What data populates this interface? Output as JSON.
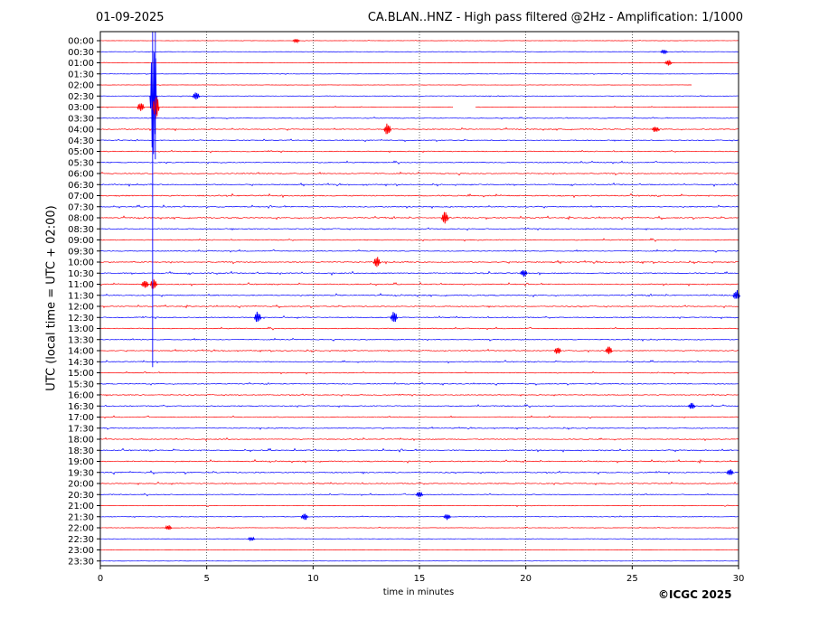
{
  "header": {
    "date": "01-09-2025",
    "title": "CA.BLAN..HNZ - High pass filtered @2Hz - Amplification: 1/1000"
  },
  "footer": {
    "copyright": "©ICGC 2025"
  },
  "colors": {
    "trace_a": "#ff0000",
    "trace_b": "#0000ff",
    "grid": "#000000",
    "blank_gap": "#ffffff"
  },
  "chart_data": {
    "type": "line",
    "xlabel": "time in minutes",
    "ylabel": "UTC (local time = UTC + 02:00)",
    "xlim": [
      0,
      30
    ],
    "x_ticks": [
      0,
      5,
      10,
      15,
      20,
      25,
      30
    ],
    "vertical_grid": [
      5,
      10,
      15,
      20,
      25
    ],
    "grid": true,
    "legend": "none",
    "rows": [
      "00:00",
      "00:30",
      "01:00",
      "01:30",
      "02:00",
      "02:30",
      "03:00",
      "03:30",
      "04:00",
      "04:30",
      "05:00",
      "05:30",
      "06:00",
      "06:30",
      "07:00",
      "07:30",
      "08:00",
      "08:30",
      "09:00",
      "09:30",
      "10:00",
      "10:30",
      "11:00",
      "11:30",
      "12:00",
      "12:30",
      "13:00",
      "13:30",
      "14:00",
      "14:30",
      "15:00",
      "15:30",
      "16:00",
      "16:30",
      "17:00",
      "17:30",
      "18:00",
      "18:30",
      "19:00",
      "19:30",
      "20:00",
      "20:30",
      "21:00",
      "21:30",
      "22:00",
      "22:30",
      "23:00",
      "23:30"
    ],
    "row_colors": [
      "red",
      "blue"
    ],
    "gaps": [
      {
        "row": "02:00",
        "from_min": 27.8,
        "to_min": 30
      },
      {
        "row": "03:00",
        "from_min": 16.6,
        "to_min": 17.6
      }
    ],
    "events": [
      {
        "row": "00:00",
        "minute": 9.2,
        "amp": 0.18
      },
      {
        "row": "00:30",
        "minute": 26.5,
        "amp": 0.2
      },
      {
        "row": "01:00",
        "minute": 26.7,
        "amp": 0.25
      },
      {
        "row": "02:30",
        "minute": 2.5,
        "amp": 6.0
      },
      {
        "row": "02:30",
        "minute": 4.5,
        "amp": 0.35
      },
      {
        "row": "03:00",
        "minute": 1.9,
        "amp": 0.45
      },
      {
        "row": "03:00",
        "minute": 2.6,
        "amp": 1.2
      },
      {
        "row": "04:00",
        "minute": 13.5,
        "amp": 0.55
      },
      {
        "row": "04:00",
        "minute": 26.1,
        "amp": 0.3
      },
      {
        "row": "08:00",
        "minute": 16.2,
        "amp": 0.6
      },
      {
        "row": "10:00",
        "minute": 13.0,
        "amp": 0.5
      },
      {
        "row": "10:30",
        "minute": 19.9,
        "amp": 0.35
      },
      {
        "row": "11:00",
        "minute": 2.1,
        "amp": 0.45
      },
      {
        "row": "11:00",
        "minute": 2.5,
        "amp": 0.5
      },
      {
        "row": "11:30",
        "minute": 29.9,
        "amp": 0.5
      },
      {
        "row": "12:30",
        "minute": 7.4,
        "amp": 0.55
      },
      {
        "row": "12:30",
        "minute": 13.8,
        "amp": 0.55
      },
      {
        "row": "14:00",
        "minute": 21.5,
        "amp": 0.35
      },
      {
        "row": "14:00",
        "minute": 23.9,
        "amp": 0.4
      },
      {
        "row": "16:30",
        "minute": 27.8,
        "amp": 0.3
      },
      {
        "row": "19:30",
        "minute": 29.6,
        "amp": 0.3
      },
      {
        "row": "20:30",
        "minute": 15.0,
        "amp": 0.3
      },
      {
        "row": "21:30",
        "minute": 9.6,
        "amp": 0.35
      },
      {
        "row": "21:30",
        "minute": 16.3,
        "amp": 0.3
      },
      {
        "row": "22:00",
        "minute": 3.2,
        "amp": 0.25
      },
      {
        "row": "22:30",
        "minute": 7.1,
        "amp": 0.22
      }
    ],
    "baseline_activity": [
      {
        "row": "00:00",
        "level": 0.05
      },
      {
        "row": "00:30",
        "level": 0.05
      },
      {
        "row": "01:00",
        "level": 0.05
      },
      {
        "row": "01:30",
        "level": 0.06
      },
      {
        "row": "02:00",
        "level": 0.05
      },
      {
        "row": "02:30",
        "level": 0.07
      },
      {
        "row": "03:00",
        "level": 0.08
      },
      {
        "row": "03:30",
        "level": 0.1
      },
      {
        "row": "04:00",
        "level": 0.14
      },
      {
        "row": "04:30",
        "level": 0.12
      },
      {
        "row": "05:00",
        "level": 0.14
      },
      {
        "row": "05:30",
        "level": 0.14
      },
      {
        "row": "06:00",
        "level": 0.15
      },
      {
        "row": "06:30",
        "level": 0.15
      },
      {
        "row": "07:00",
        "level": 0.18
      },
      {
        "row": "07:30",
        "level": 0.15
      },
      {
        "row": "08:00",
        "level": 0.16
      },
      {
        "row": "08:30",
        "level": 0.14
      },
      {
        "row": "09:00",
        "level": 0.14
      },
      {
        "row": "09:30",
        "level": 0.13
      },
      {
        "row": "10:00",
        "level": 0.16
      },
      {
        "row": "10:30",
        "level": 0.17
      },
      {
        "row": "11:00",
        "level": 0.15
      },
      {
        "row": "11:30",
        "level": 0.16
      },
      {
        "row": "12:00",
        "level": 0.14
      },
      {
        "row": "12:30",
        "level": 0.15
      },
      {
        "row": "13:00",
        "level": 0.13
      },
      {
        "row": "13:30",
        "level": 0.13
      },
      {
        "row": "14:00",
        "level": 0.13
      },
      {
        "row": "14:30",
        "level": 0.13
      },
      {
        "row": "15:00",
        "level": 0.12
      },
      {
        "row": "15:30",
        "level": 0.13
      },
      {
        "row": "16:00",
        "level": 0.13
      },
      {
        "row": "16:30",
        "level": 0.14
      },
      {
        "row": "17:00",
        "level": 0.13
      },
      {
        "row": "17:30",
        "level": 0.12
      },
      {
        "row": "18:00",
        "level": 0.13
      },
      {
        "row": "18:30",
        "level": 0.16
      },
      {
        "row": "19:00",
        "level": 0.16
      },
      {
        "row": "19:30",
        "level": 0.17
      },
      {
        "row": "20:00",
        "level": 0.15
      },
      {
        "row": "20:30",
        "level": 0.12
      },
      {
        "row": "21:00",
        "level": 0.09
      },
      {
        "row": "21:30",
        "level": 0.08
      },
      {
        "row": "22:00",
        "level": 0.07
      },
      {
        "row": "22:30",
        "level": 0.06
      },
      {
        "row": "23:00",
        "level": 0.05
      },
      {
        "row": "23:30",
        "level": 0.04
      }
    ]
  }
}
